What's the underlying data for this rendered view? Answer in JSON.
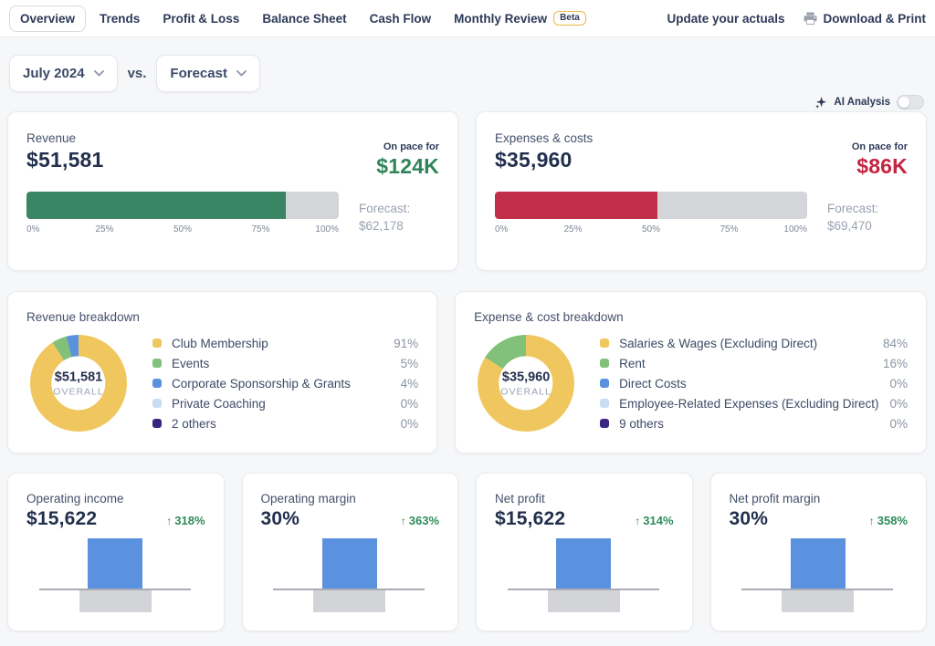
{
  "icons": {
    "up_arrow": "↑"
  },
  "nav": {
    "tabs": [
      {
        "label": "Overview",
        "active": true
      },
      {
        "label": "Trends",
        "active": false
      },
      {
        "label": "Profit & Loss",
        "active": false
      },
      {
        "label": "Balance Sheet",
        "active": false
      },
      {
        "label": "Cash Flow",
        "active": false
      },
      {
        "label": "Monthly Review",
        "active": false,
        "badge": "Beta"
      }
    ],
    "actions": {
      "update_actuals": "Update your actuals",
      "download_print": "Download & Print"
    }
  },
  "filters": {
    "period": "July 2024",
    "vs_label": "vs.",
    "compare": "Forecast"
  },
  "ai_analysis": {
    "label": "AI Analysis",
    "enabled": false
  },
  "kpi_cards": [
    {
      "title": "Revenue",
      "value": "$51,581",
      "on_pace_label": "On pace for",
      "on_pace_value": "$124K",
      "on_pace_color": "#2F8459",
      "bar_color": "#398564",
      "progress_pct": 83,
      "forecast_label": "Forecast:",
      "forecast_value": "$62,178",
      "ticks": [
        "0%",
        "25%",
        "50%",
        "75%",
        "100%"
      ]
    },
    {
      "title": "Expenses & costs",
      "value": "$35,960",
      "on_pace_label": "On pace for",
      "on_pace_value": "$86K",
      "on_pace_color": "#C52543",
      "bar_color": "#C22F48",
      "progress_pct": 52,
      "forecast_label": "Forecast:",
      "forecast_value": "$69,470",
      "ticks": [
        "0%",
        "25%",
        "50%",
        "75%",
        "100%"
      ]
    }
  ],
  "breakdown_cards": [
    {
      "title": "Revenue breakdown",
      "center_value": "$51,581",
      "center_label": "OVERALL",
      "items": [
        {
          "label": "Club Membership",
          "pct": "91%",
          "color": "#F0C75E"
        },
        {
          "label": "Events",
          "pct": "5%",
          "color": "#82C17A"
        },
        {
          "label": "Corporate Sponsorship & Grants",
          "pct": "4%",
          "color": "#5B92E0"
        },
        {
          "label": "Private Coaching",
          "pct": "0%",
          "color": "#C7DDF4"
        },
        {
          "label": "2 others",
          "pct": "0%",
          "color": "#3A2583"
        }
      ]
    },
    {
      "title": "Expense & cost breakdown",
      "center_value": "$35,960",
      "center_label": "OVERALL",
      "items": [
        {
          "label": "Salaries & Wages (Excluding Direct)",
          "pct": "84%",
          "color": "#F0C75E"
        },
        {
          "label": "Rent",
          "pct": "16%",
          "color": "#82C17A"
        },
        {
          "label": "Direct Costs",
          "pct": "0%",
          "color": "#5B92E0"
        },
        {
          "label": "Employee-Related Expenses (Excluding Direct)",
          "pct": "0%",
          "color": "#C7DDF4"
        },
        {
          "label": "9 others",
          "pct": "0%",
          "color": "#3A2583"
        }
      ]
    }
  ],
  "metric_cards": [
    {
      "title": "Operating income",
      "value": "$15,622",
      "delta": "318%",
      "delta_color": "#2E8C5A",
      "chart": {
        "actual_color": "#5B92E0",
        "comparison_color": "#D2D4D8"
      }
    },
    {
      "title": "Operating margin",
      "value": "30%",
      "delta": "363%",
      "delta_color": "#2E8C5A",
      "chart": {
        "actual_color": "#5B92E0",
        "comparison_color": "#D2D4D8"
      }
    },
    {
      "title": "Net profit",
      "value": "$15,622",
      "delta": "314%",
      "delta_color": "#2E8C5A",
      "chart": {
        "actual_color": "#5B92E0",
        "comparison_color": "#D2D4D8"
      }
    },
    {
      "title": "Net profit margin",
      "value": "30%",
      "delta": "358%",
      "delta_color": "#2E8C5A",
      "chart": {
        "actual_color": "#5B92E0",
        "comparison_color": "#D2D4D8"
      }
    }
  ]
}
